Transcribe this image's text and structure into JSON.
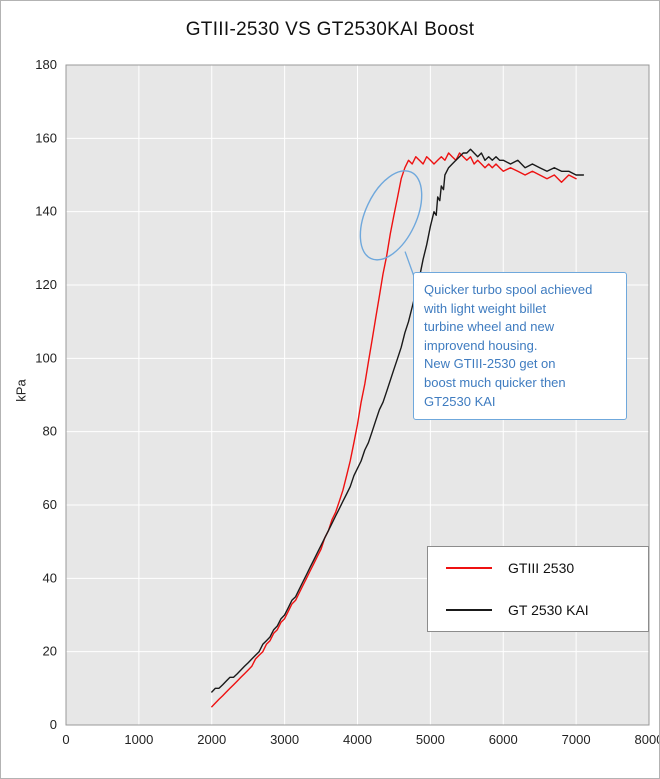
{
  "chart_data": {
    "type": "line",
    "title": "GTIII-2530 VS GT2530KAI Boost",
    "xlabel": "",
    "ylabel": "kPa",
    "xlim": [
      0,
      8000
    ],
    "ylim": [
      0,
      180
    ],
    "x_ticks": [
      0,
      1000,
      2000,
      3000,
      4000,
      5000,
      6000,
      7000,
      8000
    ],
    "y_ticks": [
      0,
      20,
      40,
      60,
      80,
      100,
      120,
      140,
      160,
      180
    ],
    "grid": true,
    "plot_bg": "#e7e7e7",
    "grid_color": "#ffffff",
    "axis_border_color": "#999999",
    "tick_label_color": "#222222",
    "legend_position": "lower right",
    "series": [
      {
        "name": "GTIII 2530",
        "color": "#ee1111",
        "points": [
          [
            2000,
            5
          ],
          [
            2050,
            6
          ],
          [
            2100,
            7
          ],
          [
            2150,
            8
          ],
          [
            2200,
            9
          ],
          [
            2250,
            10
          ],
          [
            2300,
            11
          ],
          [
            2350,
            12
          ],
          [
            2400,
            13
          ],
          [
            2450,
            14
          ],
          [
            2500,
            15
          ],
          [
            2550,
            16
          ],
          [
            2600,
            18
          ],
          [
            2650,
            19
          ],
          [
            2700,
            20
          ],
          [
            2750,
            22
          ],
          [
            2800,
            23
          ],
          [
            2850,
            25
          ],
          [
            2900,
            26
          ],
          [
            2950,
            28
          ],
          [
            3000,
            29
          ],
          [
            3050,
            31
          ],
          [
            3100,
            33
          ],
          [
            3150,
            34
          ],
          [
            3200,
            36
          ],
          [
            3250,
            38
          ],
          [
            3300,
            40
          ],
          [
            3350,
            42
          ],
          [
            3400,
            44
          ],
          [
            3450,
            46
          ],
          [
            3500,
            48
          ],
          [
            3550,
            51
          ],
          [
            3600,
            53
          ],
          [
            3650,
            56
          ],
          [
            3700,
            58
          ],
          [
            3750,
            61
          ],
          [
            3800,
            64
          ],
          [
            3850,
            68
          ],
          [
            3900,
            72
          ],
          [
            3950,
            77
          ],
          [
            4000,
            82
          ],
          [
            4050,
            88
          ],
          [
            4100,
            93
          ],
          [
            4150,
            99
          ],
          [
            4200,
            105
          ],
          [
            4250,
            111
          ],
          [
            4300,
            117
          ],
          [
            4350,
            123
          ],
          [
            4400,
            128
          ],
          [
            4450,
            134
          ],
          [
            4500,
            139
          ],
          [
            4550,
            144
          ],
          [
            4600,
            149
          ],
          [
            4650,
            152
          ],
          [
            4700,
            154
          ],
          [
            4750,
            153
          ],
          [
            4800,
            155
          ],
          [
            4850,
            154
          ],
          [
            4900,
            153
          ],
          [
            4950,
            155
          ],
          [
            5000,
            154
          ],
          [
            5050,
            153
          ],
          [
            5100,
            154
          ],
          [
            5150,
            155
          ],
          [
            5200,
            154
          ],
          [
            5250,
            156
          ],
          [
            5300,
            155
          ],
          [
            5350,
            154
          ],
          [
            5400,
            156
          ],
          [
            5450,
            155
          ],
          [
            5500,
            154
          ],
          [
            5550,
            155
          ],
          [
            5600,
            153
          ],
          [
            5650,
            154
          ],
          [
            5700,
            153
          ],
          [
            5750,
            152
          ],
          [
            5800,
            153
          ],
          [
            5850,
            152
          ],
          [
            5900,
            153
          ],
          [
            5950,
            152
          ],
          [
            6000,
            151
          ],
          [
            6100,
            152
          ],
          [
            6200,
            151
          ],
          [
            6300,
            150
          ],
          [
            6400,
            151
          ],
          [
            6500,
            150
          ],
          [
            6600,
            149
          ],
          [
            6700,
            150
          ],
          [
            6800,
            148
          ],
          [
            6900,
            150
          ],
          [
            7000,
            149
          ]
        ]
      },
      {
        "name": "GT 2530 KAI",
        "color": "#1a1a1a",
        "points": [
          [
            2000,
            9
          ],
          [
            2050,
            10
          ],
          [
            2100,
            10
          ],
          [
            2150,
            11
          ],
          [
            2200,
            12
          ],
          [
            2250,
            13
          ],
          [
            2300,
            13
          ],
          [
            2350,
            14
          ],
          [
            2400,
            15
          ],
          [
            2450,
            16
          ],
          [
            2500,
            17
          ],
          [
            2550,
            18
          ],
          [
            2600,
            19
          ],
          [
            2650,
            20
          ],
          [
            2700,
            22
          ],
          [
            2750,
            23
          ],
          [
            2800,
            24
          ],
          [
            2850,
            26
          ],
          [
            2900,
            27
          ],
          [
            2950,
            29
          ],
          [
            3000,
            30
          ],
          [
            3050,
            32
          ],
          [
            3100,
            34
          ],
          [
            3150,
            35
          ],
          [
            3200,
            37
          ],
          [
            3250,
            39
          ],
          [
            3300,
            41
          ],
          [
            3350,
            43
          ],
          [
            3400,
            45
          ],
          [
            3450,
            47
          ],
          [
            3500,
            49
          ],
          [
            3550,
            51
          ],
          [
            3600,
            53
          ],
          [
            3650,
            55
          ],
          [
            3700,
            57
          ],
          [
            3750,
            59
          ],
          [
            3800,
            61
          ],
          [
            3850,
            63
          ],
          [
            3900,
            65
          ],
          [
            3950,
            68
          ],
          [
            4000,
            70
          ],
          [
            4050,
            72
          ],
          [
            4100,
            75
          ],
          [
            4150,
            77
          ],
          [
            4200,
            80
          ],
          [
            4250,
            83
          ],
          [
            4300,
            86
          ],
          [
            4350,
            88
          ],
          [
            4400,
            91
          ],
          [
            4450,
            94
          ],
          [
            4500,
            97
          ],
          [
            4550,
            100
          ],
          [
            4600,
            103
          ],
          [
            4650,
            107
          ],
          [
            4700,
            110
          ],
          [
            4750,
            114
          ],
          [
            4800,
            118
          ],
          [
            4850,
            122
          ],
          [
            4900,
            127
          ],
          [
            4950,
            131
          ],
          [
            5000,
            136
          ],
          [
            5050,
            140
          ],
          [
            5080,
            139
          ],
          [
            5100,
            144
          ],
          [
            5130,
            143
          ],
          [
            5150,
            147
          ],
          [
            5180,
            146
          ],
          [
            5200,
            150
          ],
          [
            5250,
            152
          ],
          [
            5300,
            153
          ],
          [
            5350,
            154
          ],
          [
            5400,
            155
          ],
          [
            5450,
            156
          ],
          [
            5500,
            156
          ],
          [
            5550,
            157
          ],
          [
            5600,
            156
          ],
          [
            5650,
            155
          ],
          [
            5700,
            156
          ],
          [
            5750,
            154
          ],
          [
            5800,
            155
          ],
          [
            5850,
            154
          ],
          [
            5900,
            155
          ],
          [
            5950,
            154
          ],
          [
            6000,
            154
          ],
          [
            6100,
            153
          ],
          [
            6200,
            154
          ],
          [
            6300,
            152
          ],
          [
            6400,
            153
          ],
          [
            6500,
            152
          ],
          [
            6600,
            151
          ],
          [
            6700,
            152
          ],
          [
            6800,
            151
          ],
          [
            6900,
            151
          ],
          [
            7000,
            150
          ],
          [
            7100,
            150
          ]
        ]
      }
    ],
    "annotation": {
      "text": "Quicker turbo spool achieved\nwith light weight billet\nturbine wheel and new\nimprovend housing.\nNew GTIII-2530 get on\nboost much quicker then\nGT2530 KAI",
      "border_color": "#6fa8dc",
      "text_color": "#3f7cc0",
      "ellipse": {
        "cx_rpm": 4460,
        "cy_kpa": 139,
        "rx_rpm": 350,
        "ry_kpa": 13,
        "tilt_deg": 25
      }
    }
  }
}
